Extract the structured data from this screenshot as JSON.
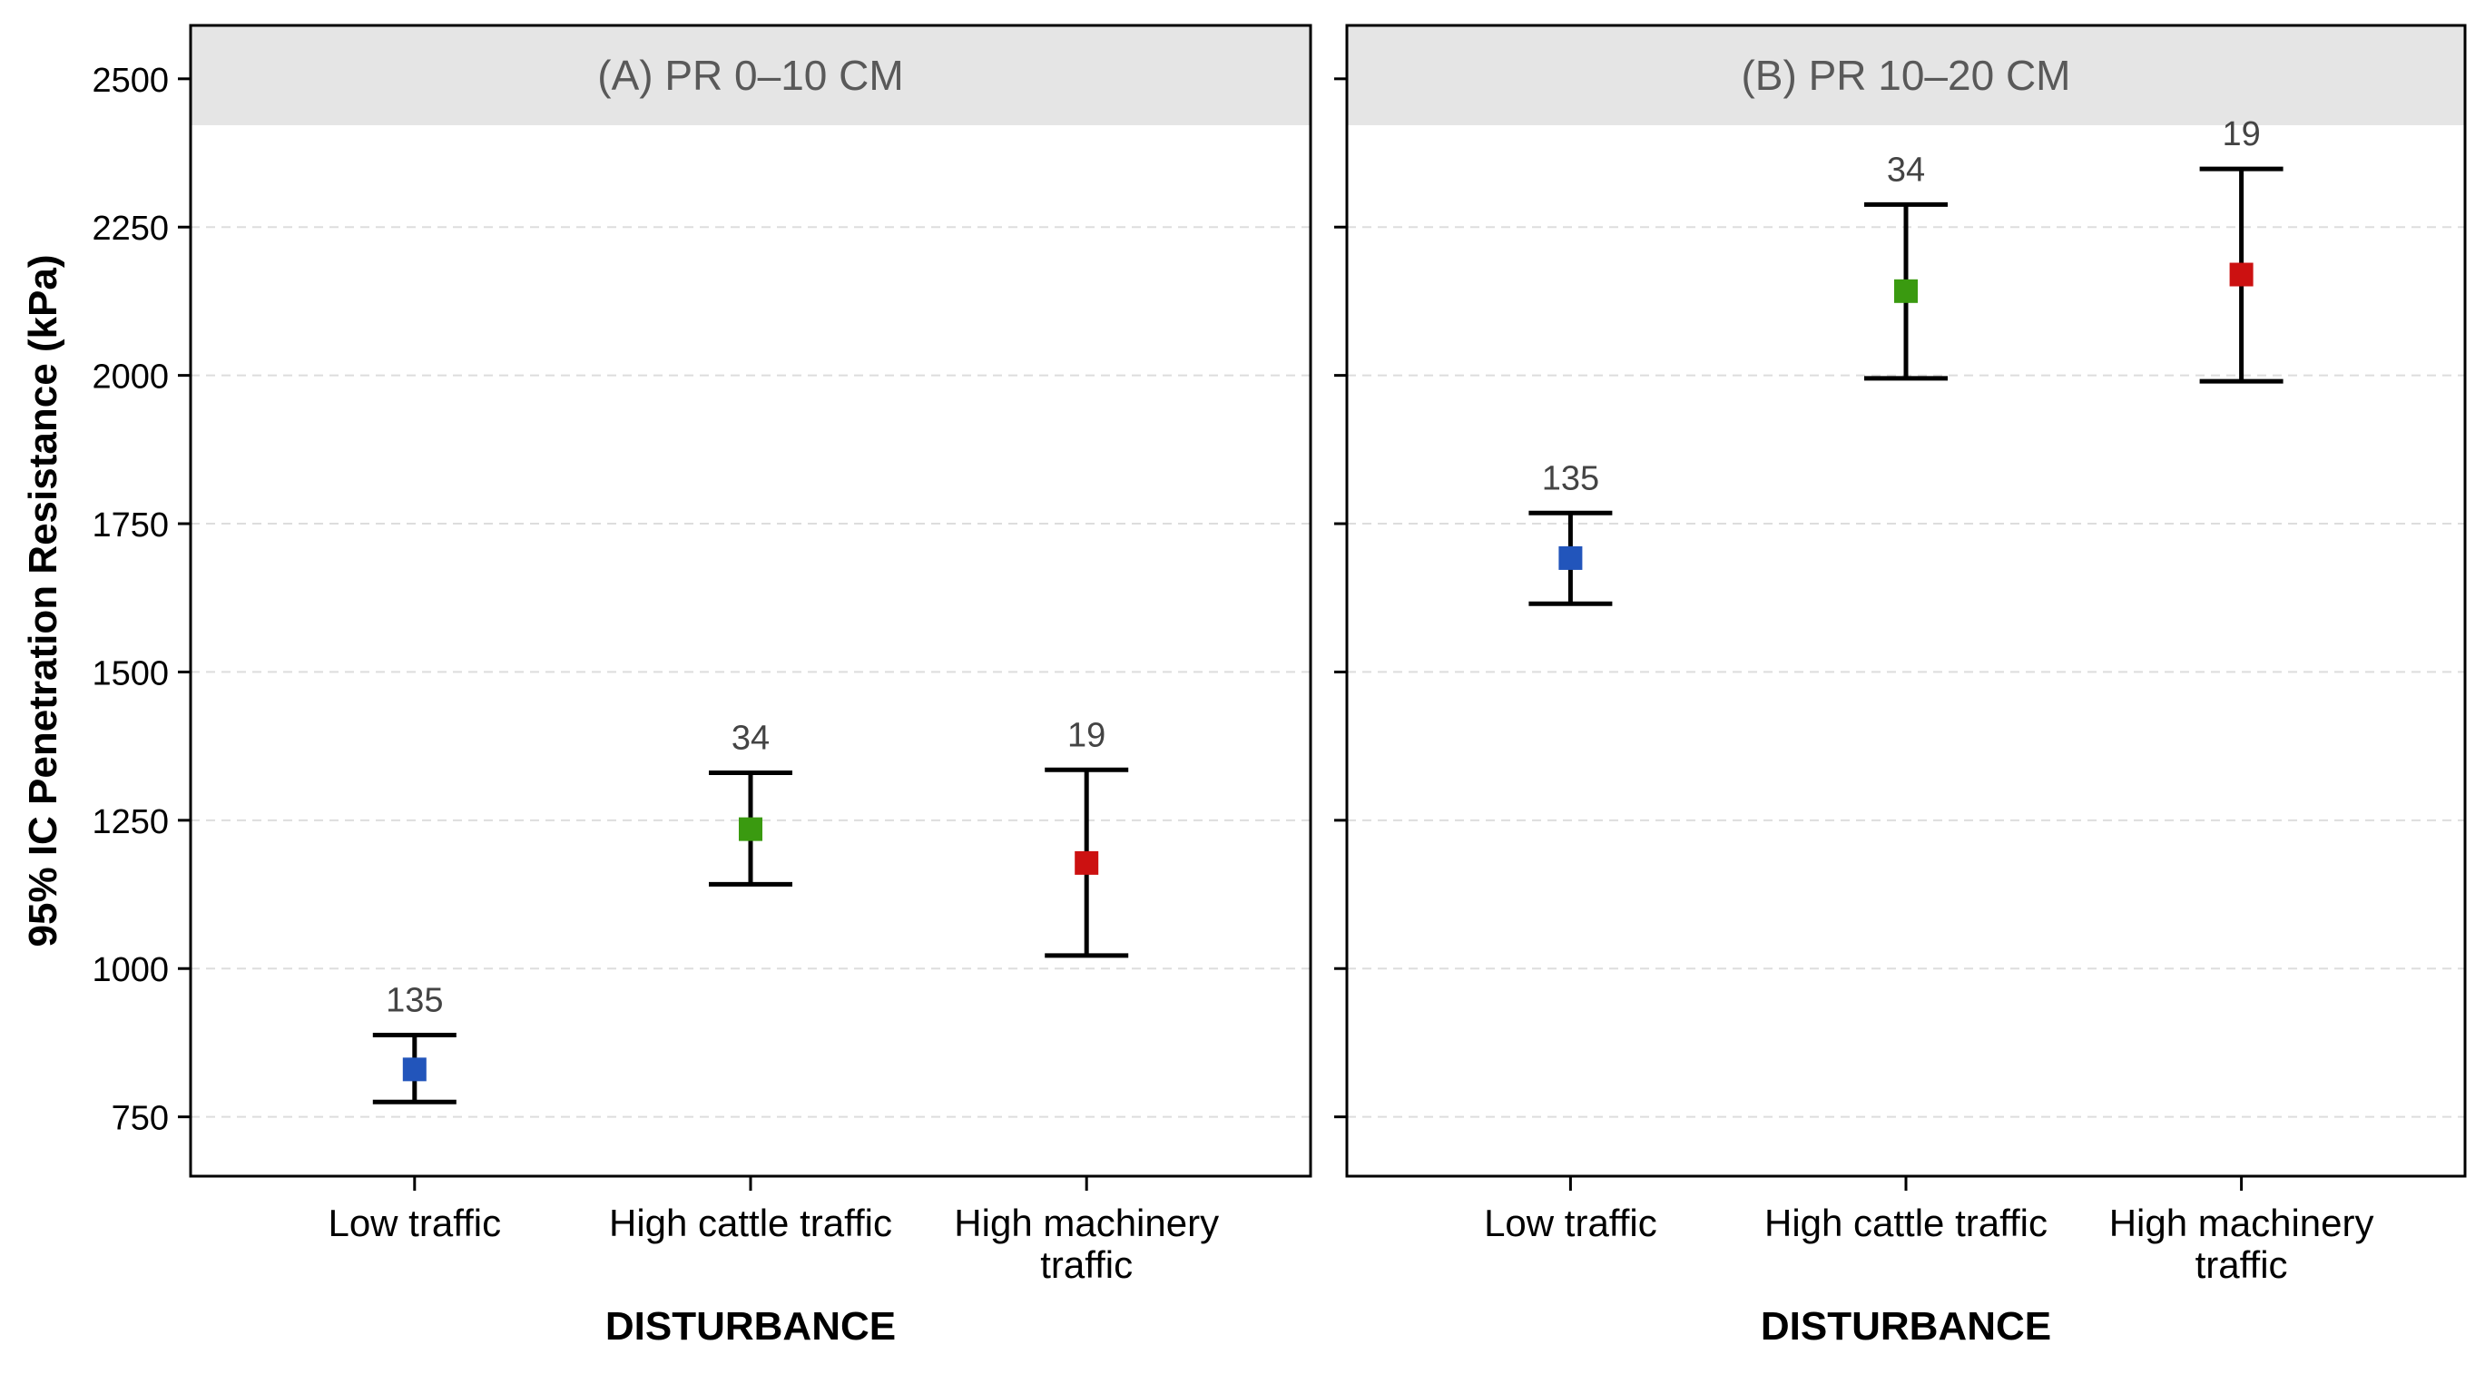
{
  "chart_data": {
    "type": "errorbar",
    "ylabel": "95% IC Penetration Resistance (kPa)",
    "ylim": [
      650,
      2590
    ],
    "yticks": [
      750,
      1000,
      1250,
      1500,
      1750,
      2000,
      2250,
      2500
    ],
    "xlabel": "DISTURBANCE",
    "categories": [
      "Low traffic",
      "High cattle traffic",
      "High machinery traffic"
    ],
    "category_label_lines": [
      [
        "Low traffic"
      ],
      [
        "High cattle traffic"
      ],
      [
        "High machinery",
        "traffic"
      ]
    ],
    "colors": [
      "#2255bb",
      "#3a9a10",
      "#cc1111"
    ],
    "grid": "horizontal dashed",
    "panels": [
      {
        "title": "(A) PR 0–10 CM",
        "means": [
          830,
          1235,
          1178
        ],
        "lower": [
          775,
          1142,
          1022
        ],
        "upper": [
          888,
          1330,
          1335
        ],
        "n": [
          "135",
          "34",
          "19"
        ]
      },
      {
        "title": "(B) PR 10–20 CM",
        "means": [
          1692,
          2142,
          2170
        ],
        "lower": [
          1615,
          1995,
          1990
        ],
        "upper": [
          1768,
          2288,
          2348
        ],
        "n": [
          "135",
          "34",
          "19"
        ]
      }
    ]
  }
}
